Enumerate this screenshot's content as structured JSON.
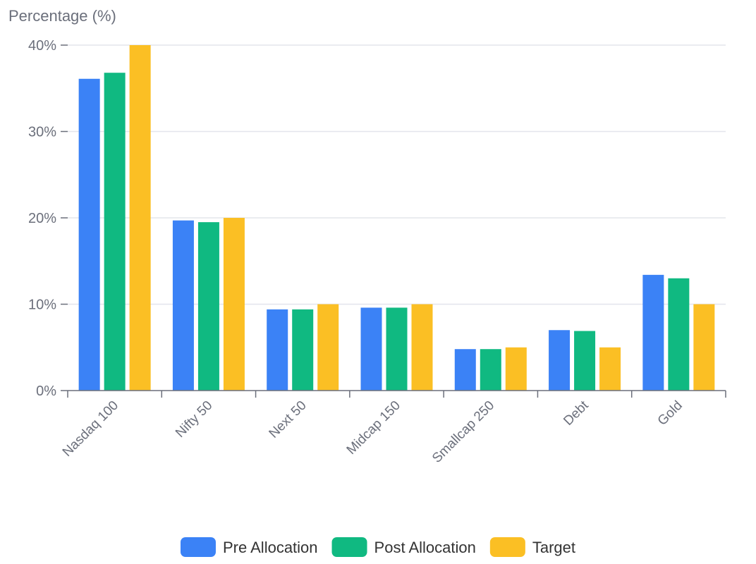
{
  "chart_data": {
    "type": "bar",
    "title": "",
    "xlabel": "",
    "ylabel": "Percentage (%)",
    "ylim": [
      0,
      40
    ],
    "y_ticks": [
      "0%",
      "10%",
      "20%",
      "30%",
      "40%"
    ],
    "y_tick_values": [
      0,
      10,
      20,
      30,
      40
    ],
    "grid": true,
    "legend_position": "bottom-center",
    "categories": [
      "Nasdaq 100",
      "Nifty 50",
      "Next 50",
      "Midcap 150",
      "Smallcap 250",
      "Debt",
      "Gold"
    ],
    "series": [
      {
        "name": "Pre Allocation",
        "color": "#3b82f6",
        "values": [
          36.1,
          19.7,
          9.4,
          9.6,
          4.8,
          7.0,
          13.4
        ]
      },
      {
        "name": "Post Allocation",
        "color": "#10b981",
        "values": [
          36.8,
          19.5,
          9.4,
          9.6,
          4.8,
          6.9,
          13.0
        ]
      },
      {
        "name": "Target",
        "color": "#fbbf24",
        "values": [
          40,
          20,
          10,
          10,
          5,
          5,
          10
        ]
      }
    ]
  }
}
